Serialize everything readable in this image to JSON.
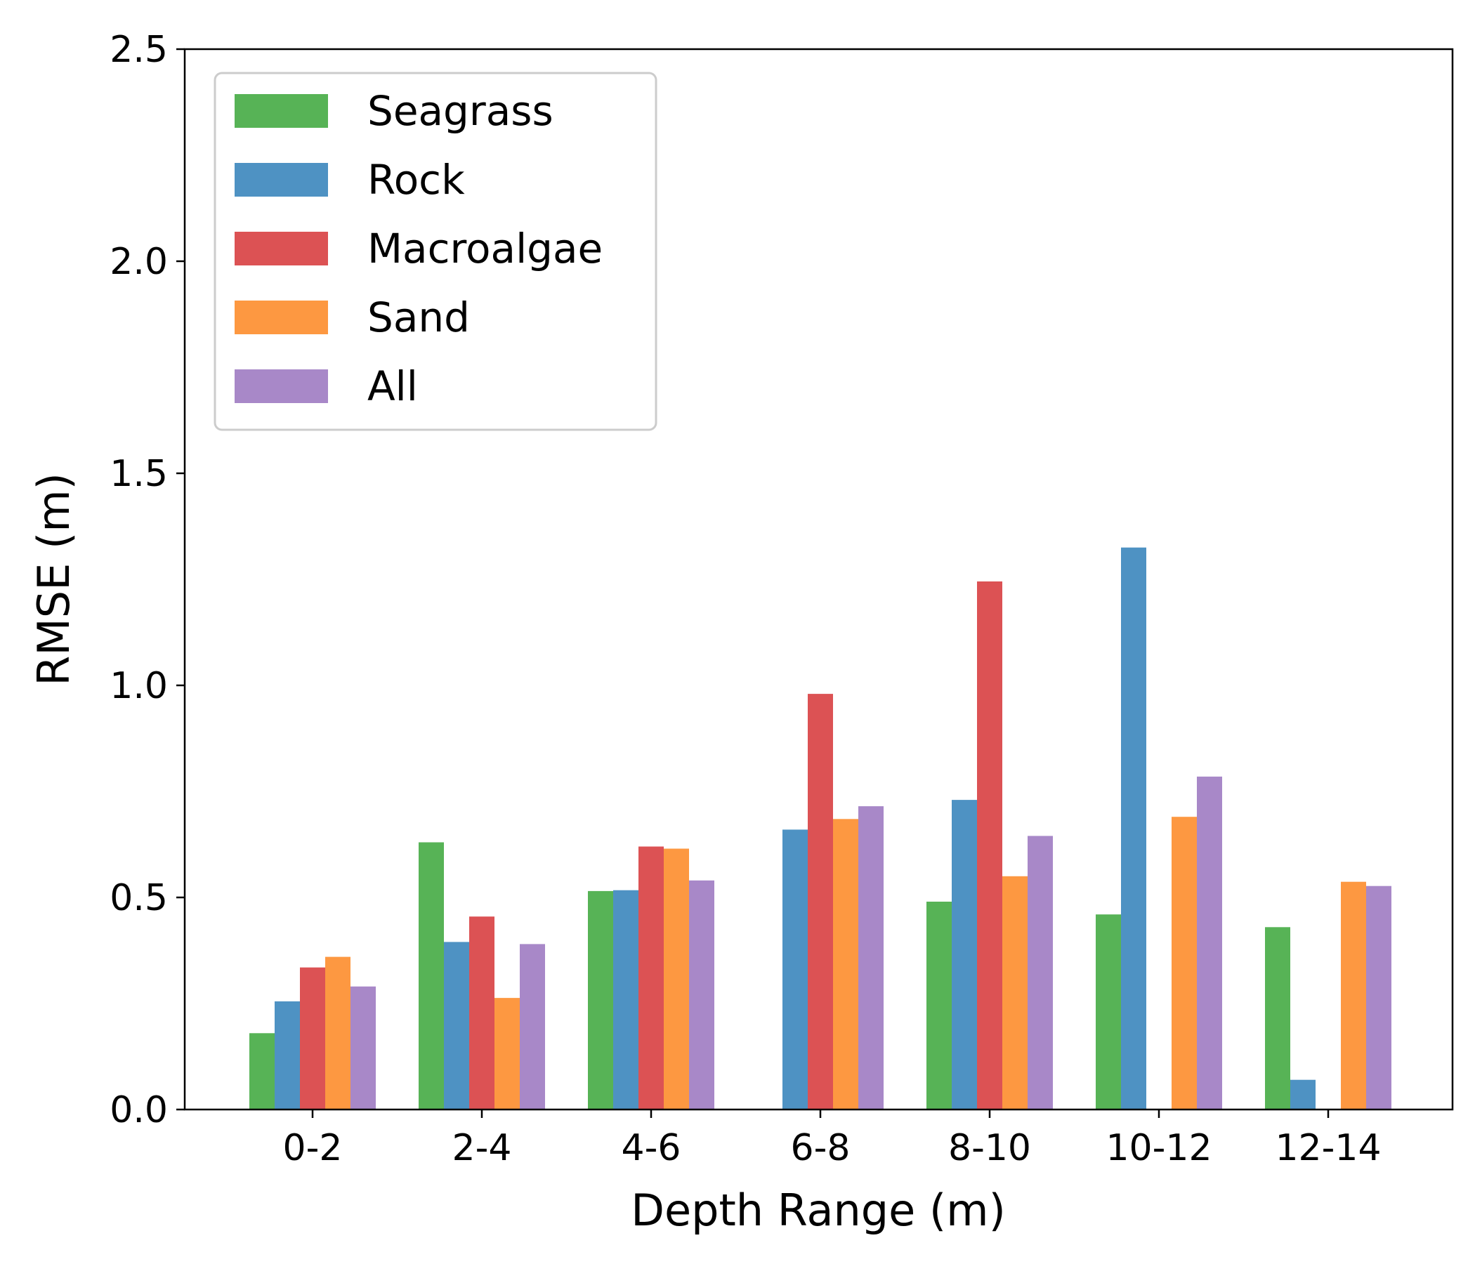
{
  "chart_data": {
    "type": "bar",
    "title": "",
    "xlabel": "Depth Range (m)",
    "ylabel": "RMSE (m)",
    "ylim": [
      0,
      2.5
    ],
    "yticks": [
      "0.0",
      "0.5",
      "1.0",
      "1.5",
      "2.0",
      "2.5"
    ],
    "categories": [
      "0-2",
      "2-4",
      "4-6",
      "6-8",
      "8-10",
      "10-12",
      "12-14"
    ],
    "legend_position": "top-left",
    "grid": false,
    "series": [
      {
        "name": "Seagrass",
        "color": "#57b356",
        "values": [
          0.18,
          0.63,
          0.515,
          null,
          0.49,
          0.46,
          0.43
        ]
      },
      {
        "name": "Rock",
        "color": "#4e92c3",
        "values": [
          0.255,
          0.395,
          0.517,
          0.66,
          0.73,
          1.325,
          0.07
        ]
      },
      {
        "name": "Macroalgae",
        "color": "#dc5254",
        "values": [
          0.335,
          0.455,
          0.62,
          0.98,
          1.245,
          null,
          null
        ]
      },
      {
        "name": "Sand",
        "color": "#fd9841",
        "values": [
          0.36,
          0.263,
          0.615,
          0.685,
          0.55,
          0.69,
          0.537
        ]
      },
      {
        "name": "All",
        "color": "#a888c8",
        "values": [
          0.29,
          0.39,
          0.54,
          0.715,
          0.645,
          0.785,
          0.527
        ]
      }
    ]
  }
}
